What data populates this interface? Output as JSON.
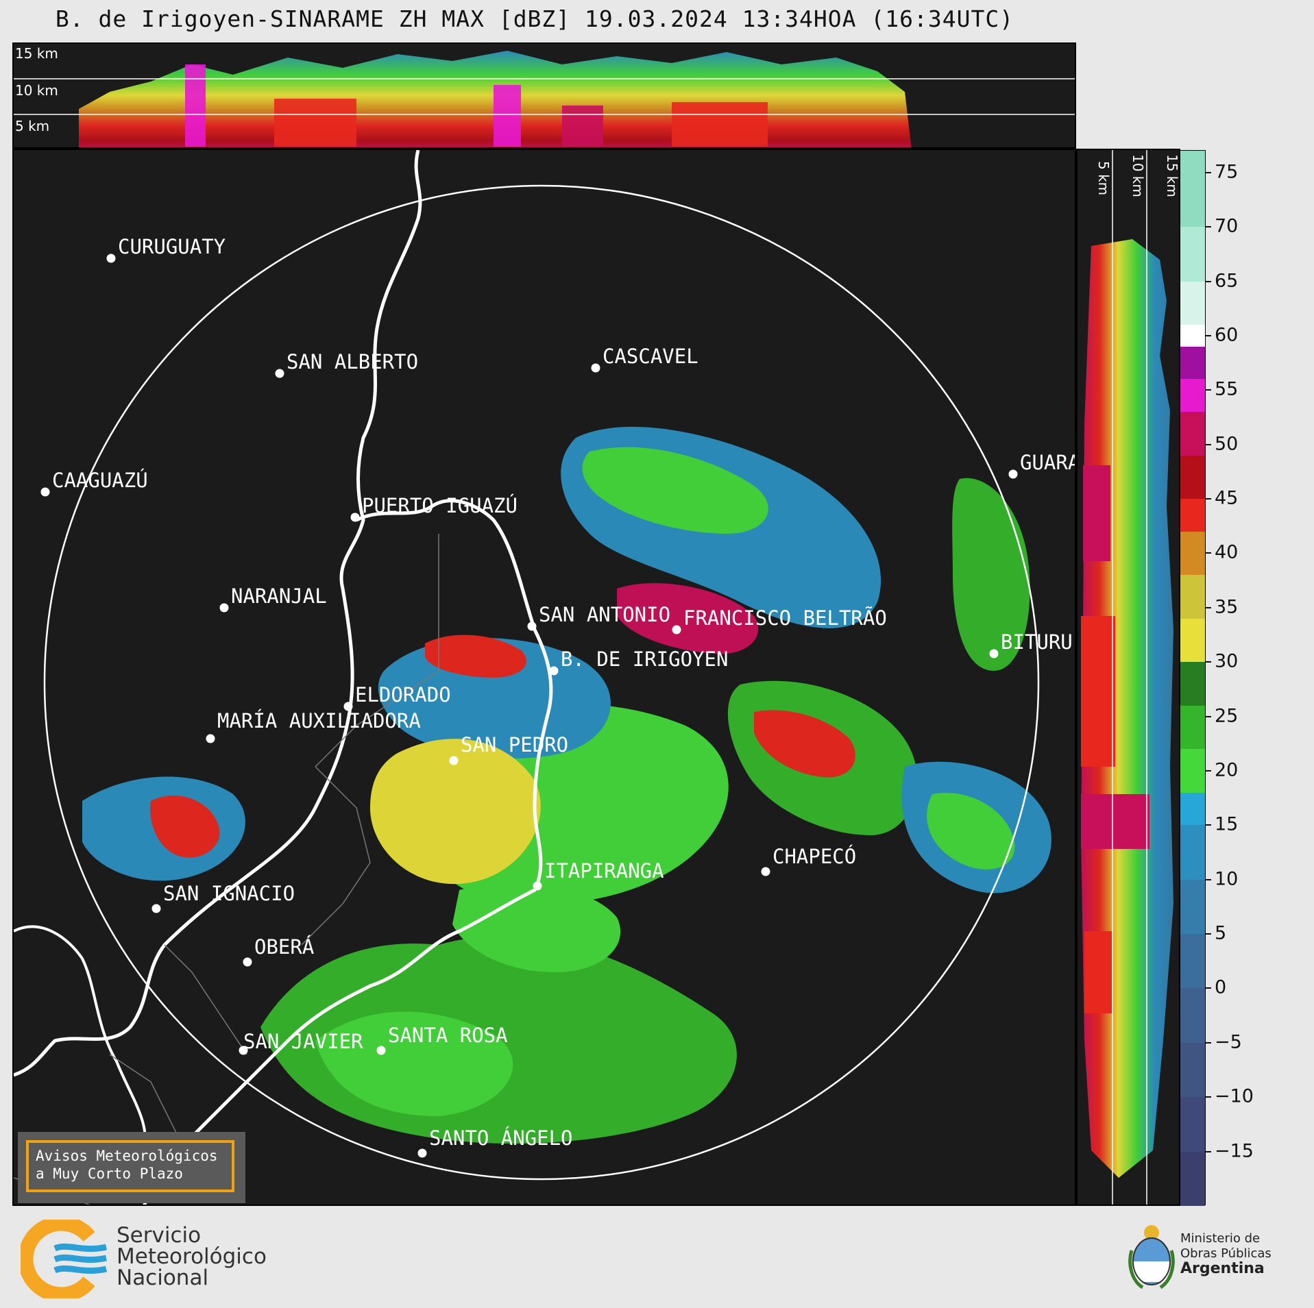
{
  "title": "B. de Irigoyen-SINARAME ZH MAX [dBZ] 19.03.2024 13:34HOA (16:34UTC)",
  "top_panel": {
    "altitudes": [
      "15 km",
      "10 km",
      "5 km"
    ]
  },
  "side_panel": {
    "altitudes": [
      "5 km",
      "10 km",
      "15 km"
    ]
  },
  "colorbar": {
    "unit": "dBZ",
    "range": [
      -20,
      77
    ],
    "ticks": [
      "75",
      "70",
      "65",
      "60",
      "55",
      "50",
      "45",
      "40",
      "35",
      "30",
      "25",
      "20",
      "15",
      "10",
      "5",
      "0",
      "−5",
      "−10",
      "−15"
    ],
    "tick_values": [
      75,
      70,
      65,
      60,
      55,
      50,
      45,
      40,
      35,
      30,
      25,
      20,
      15,
      10,
      5,
      0,
      -5,
      -10,
      -15
    ],
    "bands": [
      {
        "from": -20,
        "to": -15,
        "color": "#3b3f6e"
      },
      {
        "from": -15,
        "to": -10,
        "color": "#3f4a7a"
      },
      {
        "from": -10,
        "to": -5,
        "color": "#415583"
      },
      {
        "from": -5,
        "to": 0,
        "color": "#3f6190"
      },
      {
        "from": 0,
        "to": 5,
        "color": "#3c6e9d"
      },
      {
        "from": 5,
        "to": 10,
        "color": "#357dab"
      },
      {
        "from": 10,
        "to": 15,
        "color": "#2c8fc0"
      },
      {
        "from": 15,
        "to": 18,
        "color": "#27a7d8"
      },
      {
        "from": 18,
        "to": 22,
        "color": "#45d83a"
      },
      {
        "from": 22,
        "to": 26,
        "color": "#35b52b"
      },
      {
        "from": 26,
        "to": 30,
        "color": "#287c22"
      },
      {
        "from": 30,
        "to": 34,
        "color": "#e8e03a"
      },
      {
        "from": 34,
        "to": 38,
        "color": "#cdc43a"
      },
      {
        "from": 38,
        "to": 42,
        "color": "#d48a22"
      },
      {
        "from": 42,
        "to": 45,
        "color": "#e8281f"
      },
      {
        "from": 45,
        "to": 49,
        "color": "#b5101a"
      },
      {
        "from": 49,
        "to": 53,
        "color": "#c8105a"
      },
      {
        "from": 53,
        "to": 56,
        "color": "#e81ad0"
      },
      {
        "from": 56,
        "to": 59,
        "color": "#a010a0"
      },
      {
        "from": 59,
        "to": 61,
        "color": "#ffffff"
      },
      {
        "from": 61,
        "to": 65,
        "color": "#d8f3ea"
      },
      {
        "from": 65,
        "to": 70,
        "color": "#b0ead6"
      },
      {
        "from": 70,
        "to": 77,
        "color": "#8fdcc0"
      }
    ]
  },
  "cities": [
    {
      "name": "CURUGUATY",
      "dot_color": "#ffffff"
    },
    {
      "name": "SAN ALBERTO",
      "dot_color": "#ffffff"
    },
    {
      "name": "CASCAVEL",
      "dot_color": "#ffffff"
    },
    {
      "name": "CAAGUAZÚ",
      "dot_color": "#ffffff"
    },
    {
      "name": "PUERTO IGUAZÚ",
      "dot_color": "#ffffff"
    },
    {
      "name": "GUARA",
      "dot_color": "#ffffff"
    },
    {
      "name": "NARANJAL",
      "dot_color": "#ffffff"
    },
    {
      "name": "SAN ANTONIO",
      "dot_color": "#ffffff"
    },
    {
      "name": "FRANCISCO BELTRÃO",
      "dot_color": "#ffffff"
    },
    {
      "name": "BITURU",
      "dot_color": "#ffffff"
    },
    {
      "name": "B. DE IRIGOYEN",
      "dot_color": "#ffffff"
    },
    {
      "name": "ELDORADO",
      "dot_color": "#ffffff"
    },
    {
      "name": "MARÍA AUXILIADORA",
      "dot_color": "#ffffff"
    },
    {
      "name": "SAN PEDRO",
      "dot_color": "#ffffff"
    },
    {
      "name": "ITAPIRANGA",
      "dot_color": "#ffffff"
    },
    {
      "name": "CHAPECÓ",
      "dot_color": "#ffffff"
    },
    {
      "name": "SAN IGNACIO",
      "dot_color": "#ffffff"
    },
    {
      "name": "OBERÁ",
      "dot_color": "#ffffff"
    },
    {
      "name": "SAN JAVIER",
      "dot_color": "#ffffff"
    },
    {
      "name": "SANTA ROSA",
      "dot_color": "#ffffff"
    },
    {
      "name": "SANTO ÁNGELO",
      "dot_color": "#ffffff"
    }
  ],
  "avisos": {
    "line1": "Avisos Meteorológicos",
    "line2": "a Muy Corto Plazo",
    "border_color": "#f2a20d"
  },
  "smn": {
    "line1": "Servicio",
    "line2": "Meteorológico",
    "line3": "Nacional",
    "accent": "#f5a623",
    "wave_color": "#2a9fd8"
  },
  "ministerio": {
    "line1": "Ministerio de",
    "line2": "Obras Públicas",
    "line3": "Argentina"
  }
}
